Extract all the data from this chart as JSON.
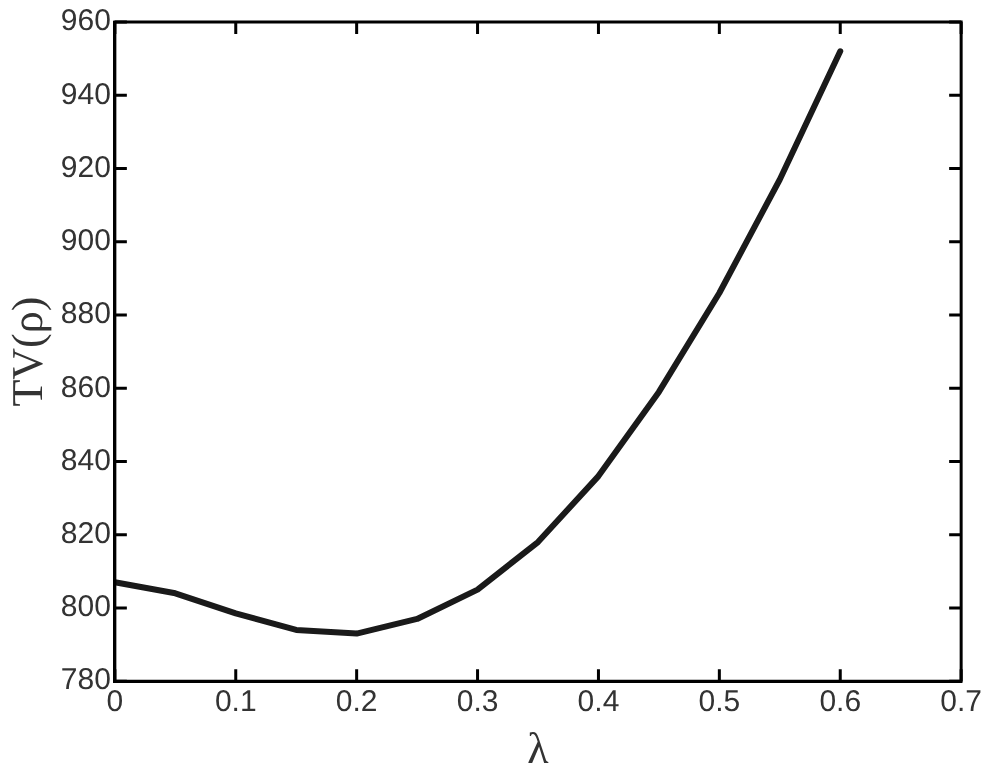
{
  "chart_data": {
    "type": "line",
    "xlabel": "λ",
    "ylabel": "TV(ρ)",
    "x": [
      0,
      0.05,
      0.1,
      0.15,
      0.2,
      0.25,
      0.3,
      0.35,
      0.4,
      0.45,
      0.5,
      0.55,
      0.6
    ],
    "series": [
      {
        "color": "#1a1a1a",
        "values": [
          807,
          804,
          798.5,
          794,
          793,
          797,
          805,
          818,
          836,
          859,
          886,
          917,
          952
        ]
      }
    ],
    "xlim": [
      0,
      0.7
    ],
    "xticks": [
      0,
      0.1,
      0.2,
      0.3,
      0.4,
      0.5,
      0.6,
      0.7
    ],
    "ylim": [
      780,
      960
    ],
    "yticks": [
      780,
      800,
      820,
      840,
      860,
      880,
      900,
      920,
      940,
      960
    ],
    "grid": false,
    "legend": false,
    "marker": "none",
    "line_style": "solid"
  }
}
